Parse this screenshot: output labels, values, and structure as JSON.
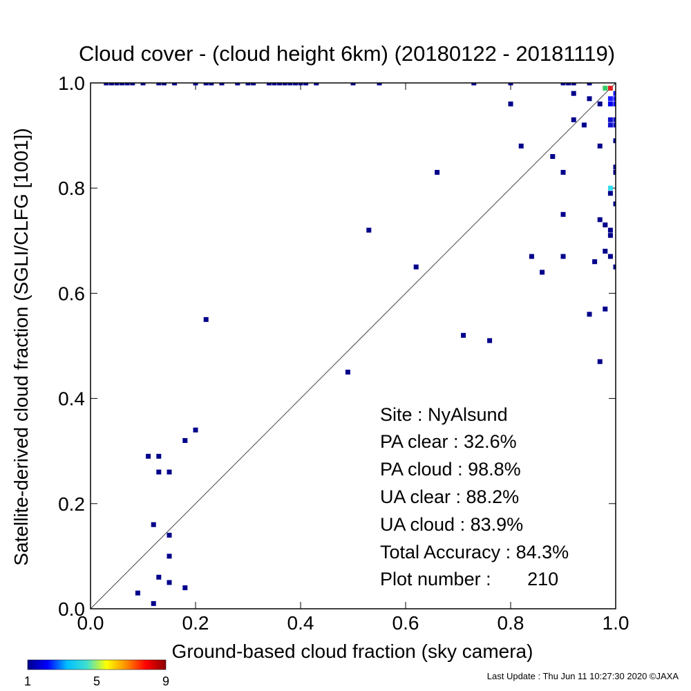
{
  "chart_data": {
    "type": "scatter",
    "title": "Cloud cover - (cloud height 6km)  (20180122 - 20181119)",
    "xlabel": "Ground-based cloud fraction (sky camera)",
    "ylabel": "Satellite-derived cloud fraction (SGLI/CLFG [1001])",
    "xlim": [
      0,
      1
    ],
    "ylim": [
      0,
      1
    ],
    "x_ticks": [
      "0.0",
      "0.2",
      "0.4",
      "0.6",
      "0.8",
      "1.0"
    ],
    "y_ticks": [
      "0.0",
      "0.2",
      "0.4",
      "0.6",
      "0.8",
      "1.0"
    ],
    "reference_line": "y = x",
    "bin_size": 0.01,
    "point_color": "#00008b",
    "points": [
      [
        0.03,
        1.0
      ],
      [
        0.04,
        1.0
      ],
      [
        0.05,
        1.0
      ],
      [
        0.06,
        1.0
      ],
      [
        0.07,
        1.0
      ],
      [
        0.08,
        1.0
      ],
      [
        0.1,
        1.0
      ],
      [
        0.13,
        1.0
      ],
      [
        0.14,
        1.0
      ],
      [
        0.16,
        1.0
      ],
      [
        0.2,
        1.0
      ],
      [
        0.22,
        1.0
      ],
      [
        0.23,
        1.0
      ],
      [
        0.25,
        1.0
      ],
      [
        0.28,
        1.0
      ],
      [
        0.3,
        1.0
      ],
      [
        0.31,
        1.0
      ],
      [
        0.34,
        1.0
      ],
      [
        0.35,
        1.0
      ],
      [
        0.36,
        1.0
      ],
      [
        0.37,
        1.0
      ],
      [
        0.38,
        1.0
      ],
      [
        0.39,
        1.0
      ],
      [
        0.4,
        1.0
      ],
      [
        0.41,
        1.0
      ],
      [
        0.43,
        1.0
      ],
      [
        0.5,
        1.0
      ],
      [
        0.55,
        1.0
      ],
      [
        0.73,
        1.0
      ],
      [
        0.8,
        1.0
      ],
      [
        0.9,
        1.0
      ],
      [
        0.91,
        1.0
      ],
      [
        0.92,
        1.0
      ],
      [
        0.95,
        1.0
      ],
      [
        0.92,
        0.98
      ],
      [
        0.95,
        0.97
      ],
      [
        0.97,
        0.96
      ],
      [
        0.8,
        0.96
      ],
      [
        0.92,
        0.93
      ],
      [
        0.94,
        0.92
      ],
      [
        0.82,
        0.88
      ],
      [
        0.97,
        0.88
      ],
      [
        0.88,
        0.86
      ],
      [
        0.66,
        0.83
      ],
      [
        0.9,
        0.83
      ],
      [
        0.99,
        0.79
      ],
      [
        0.9,
        0.75
      ],
      [
        0.97,
        0.74
      ],
      [
        0.98,
        0.73
      ],
      [
        0.99,
        0.72
      ],
      [
        0.99,
        0.71
      ],
      [
        0.53,
        0.72
      ],
      [
        0.98,
        0.68
      ],
      [
        0.96,
        0.66
      ],
      [
        0.84,
        0.67
      ],
      [
        0.9,
        0.67
      ],
      [
        0.62,
        0.65
      ],
      [
        0.86,
        0.64
      ],
      [
        0.99,
        0.67
      ],
      [
        0.22,
        0.55
      ],
      [
        0.95,
        0.56
      ],
      [
        0.98,
        0.57
      ],
      [
        0.71,
        0.52
      ],
      [
        0.76,
        0.51
      ],
      [
        0.97,
        0.47
      ],
      [
        0.49,
        0.45
      ],
      [
        0.2,
        0.34
      ],
      [
        0.18,
        0.32
      ],
      [
        0.11,
        0.29
      ],
      [
        0.13,
        0.29
      ],
      [
        0.13,
        0.26
      ],
      [
        0.15,
        0.26
      ],
      [
        0.12,
        0.16
      ],
      [
        0.15,
        0.14
      ],
      [
        0.15,
        0.1
      ],
      [
        0.13,
        0.06
      ],
      [
        0.15,
        0.05
      ],
      [
        0.18,
        0.04
      ],
      [
        0.09,
        0.03
      ],
      [
        0.12,
        0.01
      ]
    ],
    "edge_points": [
      [
        0.99,
        0.99,
        "#dd2222"
      ],
      [
        0.98,
        0.99,
        "#33cc66"
      ],
      [
        1.0,
        0.98,
        "#1a1aff"
      ],
      [
        0.99,
        0.97,
        "#1a1aff"
      ],
      [
        1.0,
        0.97,
        "#1a1aff"
      ],
      [
        0.99,
        0.96,
        "#0000ee"
      ],
      [
        1.0,
        0.96,
        "#0000ee"
      ],
      [
        0.99,
        0.93,
        "#1010cc"
      ],
      [
        1.0,
        0.93,
        "#1010cc"
      ],
      [
        0.99,
        0.92,
        "#1010cc"
      ],
      [
        1.0,
        0.92,
        "#1010cc"
      ],
      [
        1.0,
        0.89,
        "#00008b"
      ],
      [
        1.0,
        0.84,
        "#00008b"
      ],
      [
        1.0,
        0.83,
        "#00008b"
      ],
      [
        0.99,
        0.8,
        "#33ddee"
      ],
      [
        1.0,
        0.77,
        "#00008b"
      ],
      [
        1.0,
        0.65,
        "#00008b"
      ]
    ],
    "colorbar": {
      "ticks": [
        "1",
        "5",
        "9"
      ],
      "colors": [
        "#00008b",
        "#0000ff",
        "#00bfff",
        "#40e0d0",
        "#ffff00",
        "#ff8c00",
        "#ff0000",
        "#8b0000"
      ]
    },
    "annotations": {
      "site": "Site : NyAlsund",
      "pa_clear": "PA clear :  32.6%",
      "pa_cloud": "PA cloud :  98.8%",
      "ua_clear": "UA clear :  88.2%",
      "ua_cloud": "UA cloud :  83.9%",
      "total_accuracy": "Total Accuracy :  84.3%",
      "plot_number": "Plot number :       210"
    }
  },
  "footer": {
    "last_update": "Last Update : Thu Jun 11 10:27:30 2020  ©JAXA"
  }
}
